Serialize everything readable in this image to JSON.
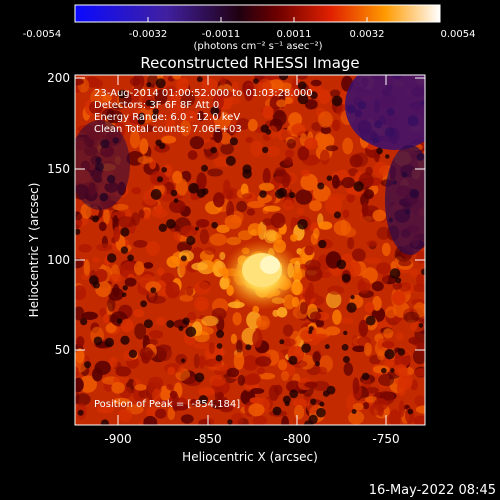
{
  "colorbar": {
    "ticks": [
      "-0.0054",
      "-0.0032",
      "-0.0011",
      "0.0011",
      "0.0032",
      "0.0054"
    ],
    "unit_label": "(photons cm⁻² s⁻¹ asec⁻²)"
  },
  "image": {
    "title": "Reconstructed RHESSI Image",
    "info_lines": [
      "23-Aug-2014 01:00:52.000 to 01:03:28.000",
      "Detectors: 3F 6F 8F  Att 0",
      "Energy Range: 6.0 - 12.0 keV",
      "Clean     Total counts: 7.06E+03"
    ],
    "peak_text": "Position of Peak = [-854,184]"
  },
  "axes": {
    "xlabel": "Heliocentric X (arcsec)",
    "ylabel": "Heliocentric Y (arcsec)",
    "xticks": [
      "-900",
      "-850",
      "-800",
      "-750"
    ],
    "yticks": [
      "200",
      "150",
      "100",
      "50"
    ]
  },
  "footer": {
    "date": "16-May-2022 08:45"
  },
  "colors": {
    "background": "#000000",
    "text": "#ffffff"
  }
}
